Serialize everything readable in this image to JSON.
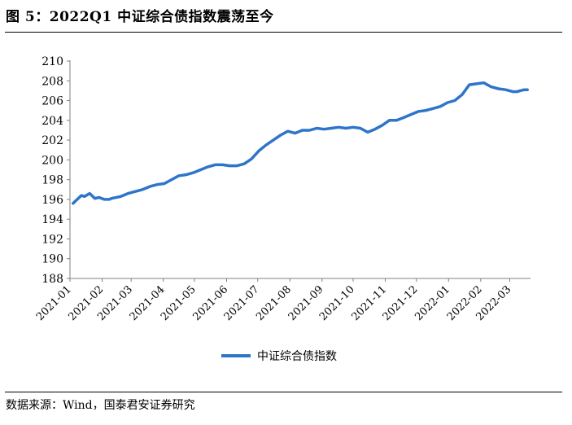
{
  "figure": {
    "title": "图 5：2022Q1 中证综合债指数震荡至今",
    "source": "数据来源：Wind，国泰君安证券研究"
  },
  "colors": {
    "series": "#2E75C9",
    "axis": "#808080",
    "text": "#000000"
  },
  "chart_data": {
    "type": "line",
    "title": "",
    "xlabel": "",
    "ylabel": "",
    "ylim": [
      188,
      210
    ],
    "yticks": [
      188,
      190,
      192,
      194,
      196,
      198,
      200,
      202,
      204,
      206,
      208,
      210
    ],
    "xticks": [
      "2021-01",
      "2021-02",
      "2021-03",
      "2021-04",
      "2021-05",
      "2021-06",
      "2021-07",
      "2021-08",
      "2021-09",
      "2021-10",
      "2021-11",
      "2021-12",
      "2022-01",
      "2022-02",
      "2022-03"
    ],
    "grid": false,
    "legend": "bottom-center",
    "series": [
      {
        "name": "中证综合债指数",
        "x": [
          "2021-01-04",
          "2021-01-08",
          "2021-01-12",
          "2021-01-15",
          "2021-01-20",
          "2021-01-25",
          "2021-01-29",
          "2021-02-03",
          "2021-02-08",
          "2021-02-10",
          "2021-02-19",
          "2021-02-26",
          "2021-03-05",
          "2021-03-12",
          "2021-03-19",
          "2021-03-26",
          "2021-04-02",
          "2021-04-09",
          "2021-04-16",
          "2021-04-23",
          "2021-04-30",
          "2021-05-07",
          "2021-05-14",
          "2021-05-21",
          "2021-05-28",
          "2021-06-04",
          "2021-06-11",
          "2021-06-18",
          "2021-06-25",
          "2021-07-02",
          "2021-07-09",
          "2021-07-16",
          "2021-07-23",
          "2021-07-30",
          "2021-08-06",
          "2021-08-13",
          "2021-08-20",
          "2021-08-27",
          "2021-09-03",
          "2021-09-10",
          "2021-09-17",
          "2021-09-24",
          "2021-10-01",
          "2021-10-08",
          "2021-10-15",
          "2021-10-22",
          "2021-10-29",
          "2021-11-05",
          "2021-11-12",
          "2021-11-19",
          "2021-11-26",
          "2021-12-03",
          "2021-12-10",
          "2021-12-17",
          "2021-12-24",
          "2021-12-31",
          "2022-01-07",
          "2022-01-14",
          "2022-01-21",
          "2022-01-28",
          "2022-02-04",
          "2022-02-11",
          "2022-02-18",
          "2022-02-25",
          "2022-03-04",
          "2022-03-08",
          "2022-03-11",
          "2022-03-15",
          "2022-03-18"
        ],
        "values": [
          195.6,
          196.0,
          196.4,
          196.3,
          196.6,
          196.1,
          196.2,
          196.0,
          196.0,
          196.1,
          196.3,
          196.6,
          196.8,
          197.0,
          197.3,
          197.5,
          197.6,
          198.0,
          198.4,
          198.5,
          198.7,
          199.0,
          199.3,
          199.5,
          199.5,
          199.4,
          199.4,
          199.6,
          200.1,
          200.9,
          201.5,
          202.0,
          202.5,
          202.9,
          202.7,
          203.0,
          203.0,
          203.2,
          203.1,
          203.2,
          203.3,
          203.2,
          203.3,
          203.2,
          202.8,
          203.1,
          203.5,
          204.0,
          204.0,
          204.3,
          204.6,
          204.9,
          205.0,
          205.2,
          205.4,
          205.8,
          206.0,
          206.6,
          207.6,
          207.7,
          207.8,
          207.4,
          207.2,
          207.1,
          206.9,
          206.9,
          207.0,
          207.1,
          207.1
        ]
      }
    ]
  }
}
